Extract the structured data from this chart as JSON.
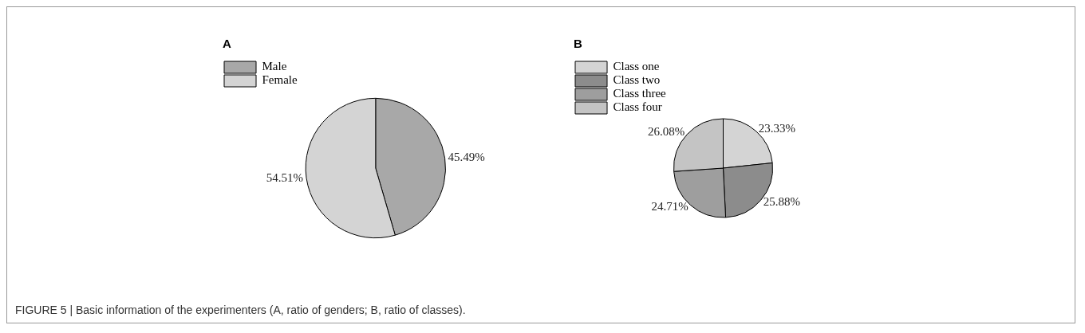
{
  "chart_data": [
    {
      "type": "pie",
      "title": "A",
      "categories": [
        "Male",
        "Female"
      ],
      "values": [
        45.49,
        54.51
      ],
      "colors": [
        "#a8a8a8",
        "#d4d4d4"
      ],
      "value_labels": [
        "45.49%",
        "54.51%"
      ],
      "legend": "top left",
      "annotations": [
        "FIGURE 5 | Basic information of the experimenters (A, ratio of genders; B, ratio of classes)."
      ]
    },
    {
      "type": "pie",
      "title": "B",
      "categories": [
        "Class one",
        "Class two",
        "Class three",
        "Class four"
      ],
      "values": [
        23.33,
        25.88,
        24.71,
        26.08
      ],
      "colors": [
        "#d4d4d4",
        "#8c8c8c",
        "#9e9e9e",
        "#c4c4c4"
      ],
      "value_labels": [
        "23.33%",
        "25.88%",
        "24.71%",
        "26.08%"
      ],
      "legend": "top left"
    }
  ]
}
